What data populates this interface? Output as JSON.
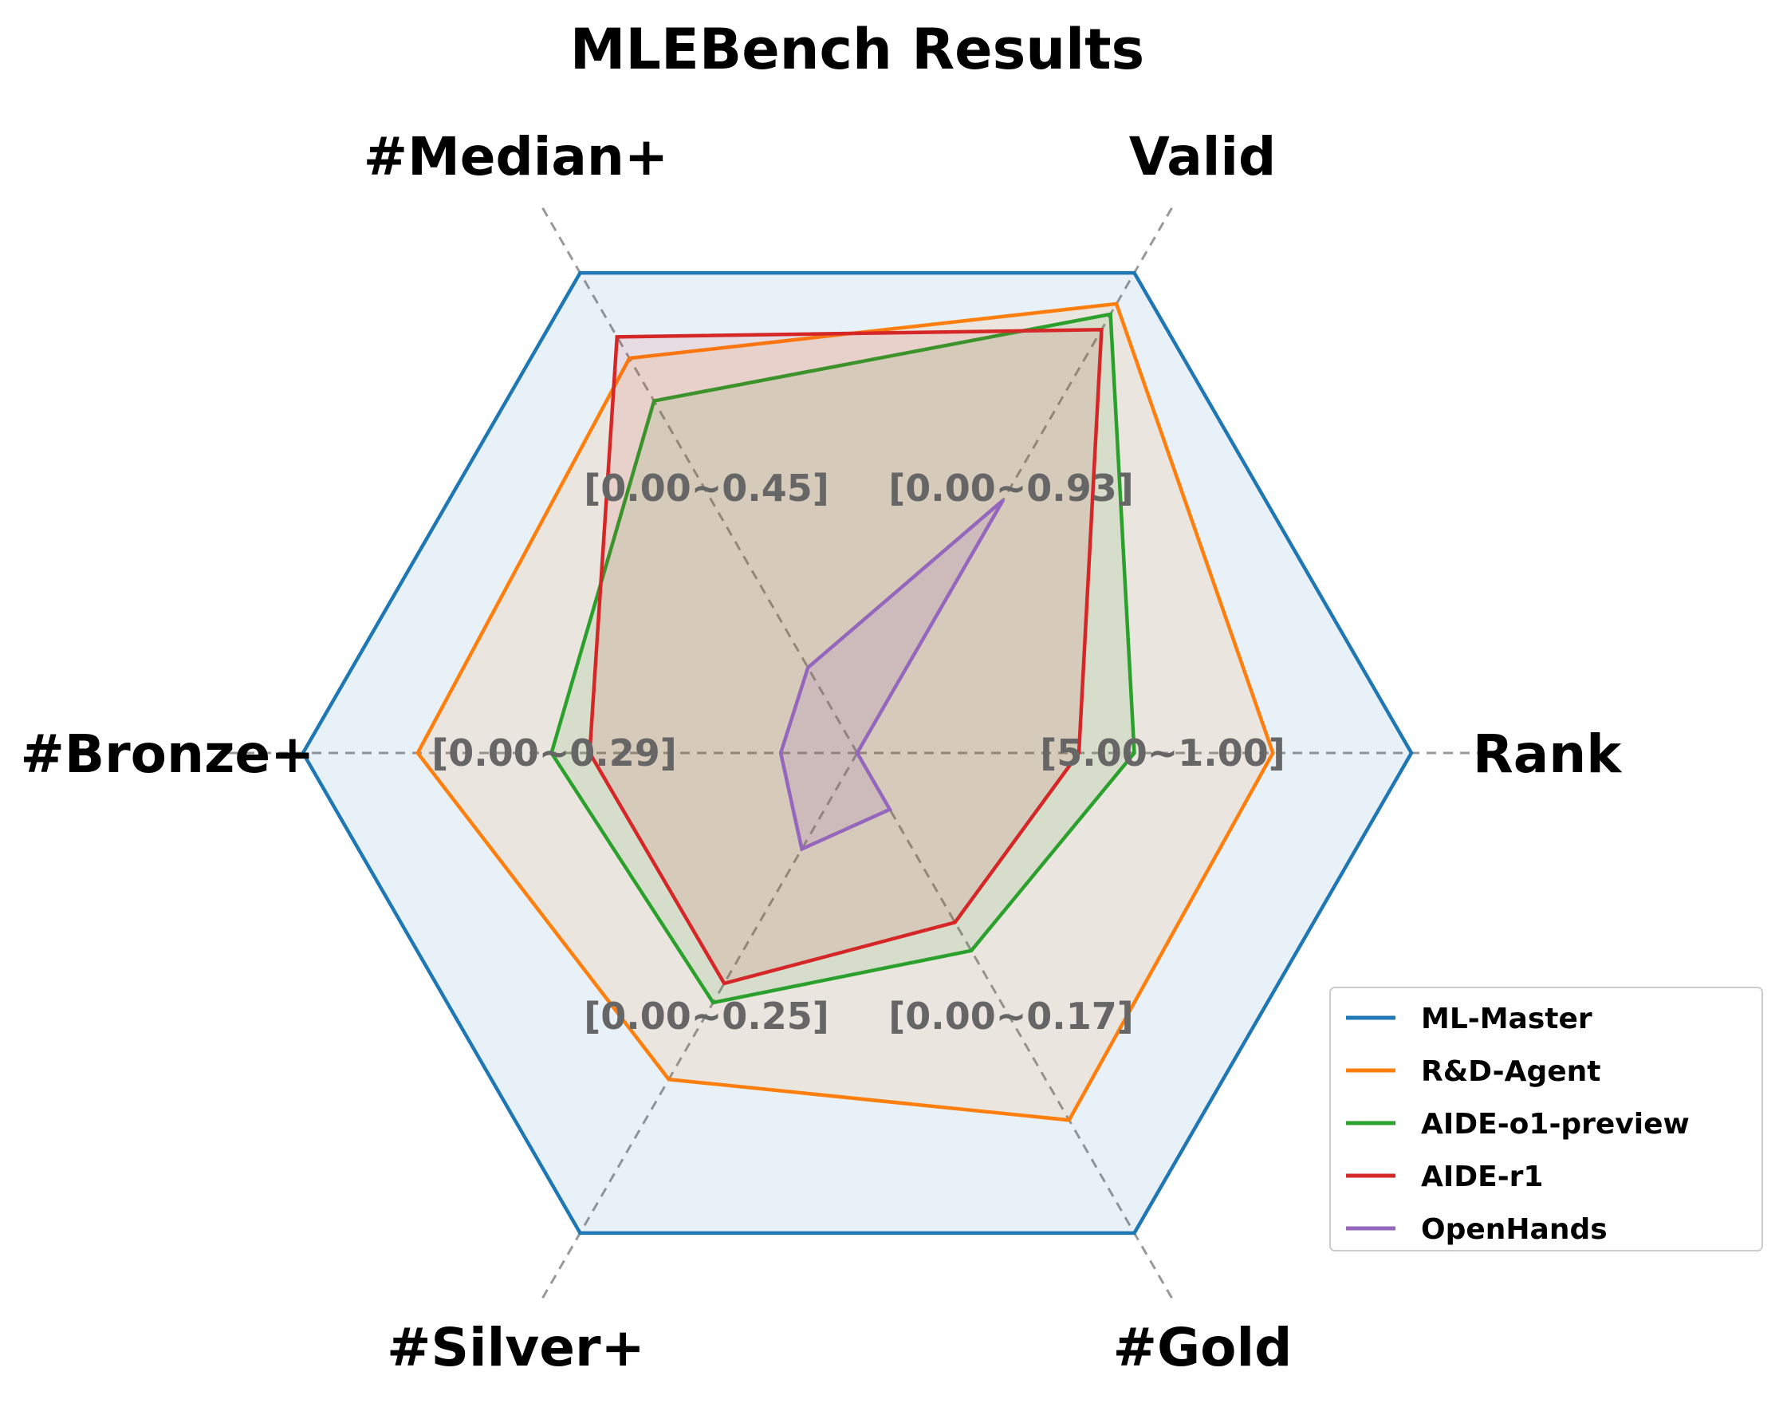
{
  "chart_data": {
    "type": "radar",
    "title": "MLEBench Results",
    "axes": [
      {
        "name": "Rank",
        "range_label": "[5.00~1.00]",
        "min": 5.0,
        "max": 1.0
      },
      {
        "name": "Valid",
        "range_label": "[0.00~0.93]",
        "min": 0.0,
        "max": 0.93
      },
      {
        "name": "#Median+",
        "range_label": "[0.00~0.45]",
        "min": 0.0,
        "max": 0.45
      },
      {
        "name": "#Bronze+",
        "range_label": "[0.00~0.29]",
        "min": 0.0,
        "max": 0.29
      },
      {
        "name": "#Silver+",
        "range_label": "[0.00~0.25]",
        "min": 0.0,
        "max": 0.25
      },
      {
        "name": "#Gold",
        "range_label": "[0.00~0.17]",
        "min": 0.0,
        "max": 0.17
      }
    ],
    "series": [
      {
        "name": "ML-Master",
        "color": "#1f77b4",
        "fill_opacity": 0.1,
        "values": [
          1.0,
          0.93,
          0.45,
          0.29,
          0.25,
          0.17
        ]
      },
      {
        "name": "R&D-Agent",
        "color": "#ff7f0e",
        "fill_opacity": 0.1,
        "values": [
          2.0,
          0.87,
          0.37,
          0.23,
          0.17,
          0.13
        ]
      },
      {
        "name": "AIDE-o1-preview",
        "color": "#2ca02c",
        "fill_opacity": 0.1,
        "values": [
          3.0,
          0.85,
          0.33,
          0.16,
          0.13,
          0.07
        ]
      },
      {
        "name": "AIDE-r1",
        "color": "#d62728",
        "fill_opacity": 0.1,
        "values": [
          3.4,
          0.82,
          0.39,
          0.14,
          0.12,
          0.06
        ]
      },
      {
        "name": "OpenHands",
        "color": "#9467bd",
        "fill_opacity": 0.15,
        "values": [
          5.0,
          0.49,
          0.08,
          0.04,
          0.05,
          0.02
        ]
      }
    ],
    "grid": true,
    "legend_position": "lower-right"
  }
}
